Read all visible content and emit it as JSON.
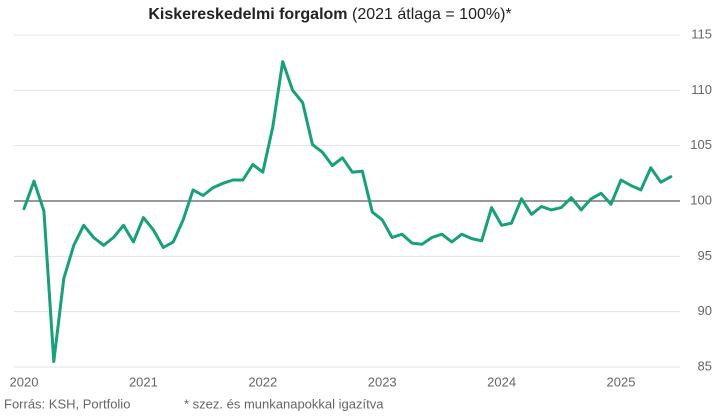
{
  "chart_data": {
    "type": "line",
    "title": "Kiskereskedelmi forgalom",
    "subtitle": "(2021 átlaga = 100%)*",
    "source": "Forrás: KSH, Portfolio",
    "note": "* szez. és munkanapokkal igazítva",
    "categories": [
      "2020",
      null,
      null,
      null,
      null,
      null,
      null,
      null,
      null,
      null,
      null,
      null,
      "2021",
      null,
      null,
      null,
      null,
      null,
      null,
      null,
      null,
      null,
      null,
      null,
      "2022",
      null,
      null,
      null,
      null,
      null,
      null,
      null,
      null,
      null,
      null,
      null,
      "2023",
      null,
      null,
      null,
      null,
      null,
      null,
      null,
      null,
      null,
      null,
      null,
      "2024",
      null,
      null,
      null,
      null,
      null,
      null,
      null,
      null,
      null,
      null,
      null,
      "2025",
      null,
      null,
      null,
      null,
      null
    ],
    "values": [
      99.3,
      101.8,
      99.1,
      85.5,
      93.0,
      96.0,
      97.8,
      96.7,
      96.0,
      96.7,
      97.8,
      96.3,
      98.5,
      97.4,
      95.8,
      96.3,
      98.3,
      101.0,
      100.5,
      101.2,
      101.6,
      101.9,
      101.9,
      103.3,
      102.6,
      106.7,
      112.6,
      110.0,
      108.9,
      105.1,
      104.4,
      103.2,
      103.9,
      102.6,
      102.7,
      99.0,
      98.3,
      96.7,
      97.0,
      96.2,
      96.1,
      96.7,
      97.0,
      96.3,
      97.0,
      96.6,
      96.4,
      99.4,
      97.8,
      98.0,
      100.2,
      98.8,
      99.5,
      99.2,
      99.4,
      100.3,
      99.2,
      100.2,
      100.7,
      99.7,
      101.9,
      101.4,
      101.0,
      103.0,
      101.7,
      102.2
    ],
    "color": "#17a07a",
    "ylim": [
      85,
      115
    ],
    "yticks": [
      85,
      90,
      95,
      100,
      105,
      110,
      115
    ],
    "reference_line": 100,
    "grid": true
  }
}
